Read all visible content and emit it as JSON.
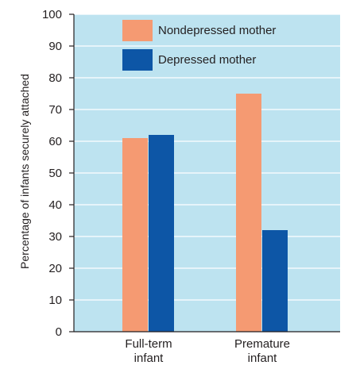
{
  "chart_data": {
    "type": "bar",
    "categories": [
      [
        "Full-term",
        "infant"
      ],
      [
        "Premature",
        "infant"
      ]
    ],
    "series": [
      {
        "name": "Nondepressed mother",
        "color": "#f59a72",
        "values": [
          61,
          75
        ]
      },
      {
        "name": "Depressed mother",
        "color": "#0d56a6",
        "values": [
          62,
          32
        ]
      }
    ],
    "ylabel": "Percentage of infants securely attached",
    "ylim": [
      0,
      100
    ],
    "yticks": [
      0,
      10,
      20,
      30,
      40,
      50,
      60,
      70,
      80,
      90,
      100
    ],
    "grid": true,
    "legend_position": "top-center",
    "plot_background": "#bde3f0"
  }
}
